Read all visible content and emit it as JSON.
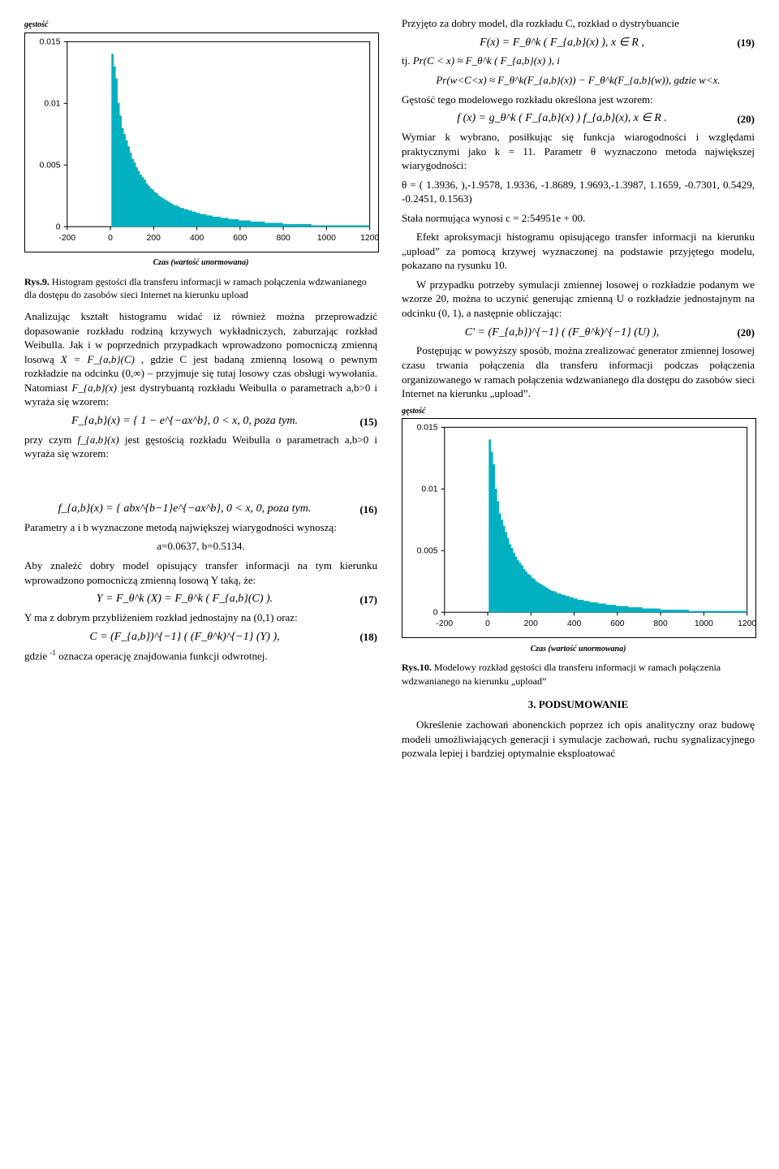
{
  "chart9": {
    "type": "histogram",
    "ylabel": "gęstość",
    "xlabel": "Czas (wartość unormowana)",
    "xlim": [
      -200,
      1200
    ],
    "ylim": [
      0,
      0.015
    ],
    "xticks": [
      -200,
      0,
      200,
      400,
      600,
      800,
      1000,
      1200
    ],
    "yticks": [
      0,
      0.005,
      0.01,
      0.015
    ],
    "bar_color": "#00b0c0",
    "bg_color": "#ffffff",
    "axis_color": "#000000",
    "bins": [
      0,
      0,
      0,
      0,
      0,
      0,
      0,
      0,
      0,
      0,
      0,
      0,
      0,
      0,
      0,
      0,
      0,
      0,
      0,
      0,
      0.0,
      0.0,
      0.014,
      0.013,
      0.012,
      0.01,
      0.009,
      0.008,
      0.0075,
      0.007,
      0.0065,
      0.006,
      0.0055,
      0.0052,
      0.0048,
      0.0045,
      0.0042,
      0.004,
      0.0038,
      0.0035,
      0.0033,
      0.0031,
      0.003,
      0.0028,
      0.0027,
      0.0025,
      0.0024,
      0.0023,
      0.0022,
      0.0021,
      0.002,
      0.0019,
      0.0018,
      0.0017,
      0.0017,
      0.0016,
      0.0015,
      0.0015,
      0.0014,
      0.0014,
      0.0013,
      0.0013,
      0.0012,
      0.0012,
      0.0011,
      0.0011,
      0.001,
      0.001,
      0.001,
      0.0009,
      0.0009,
      0.0009,
      0.0008,
      0.0008,
      0.0008,
      0.0008,
      0.0007,
      0.0007,
      0.0007,
      0.0007,
      0.0006,
      0.0006,
      0.0006,
      0.0006,
      0.0006,
      0.0005,
      0.0005,
      0.0005,
      0.0005,
      0.0005,
      0.0005,
      0.0004,
      0.0004,
      0.0004,
      0.0004,
      0.0004,
      0.0004,
      0.0004,
      0.0003,
      0.0003,
      0.0003,
      0.0003,
      0.0003,
      0.0003,
      0.0003,
      0.0003,
      0.0003,
      0.0002,
      0.0002,
      0.0002,
      0.0002,
      0.0002,
      0.0002,
      0.0002,
      0.0002,
      0.0002,
      0.0002,
      0.0002,
      0.0002,
      0.0002,
      0.0002,
      0.0001,
      0.0001,
      0.0001,
      0.0001,
      0.0001,
      0.0001,
      0.0001,
      0.0001,
      0.0001,
      0.0001,
      0.0001,
      0.0001,
      0.0001,
      0.0001,
      0.0001,
      0.0001,
      0.0001,
      0.0001,
      0.0001,
      0.0001,
      0.0001,
      0.0001,
      0.0001,
      0.0001,
      0.0001,
      0.0001,
      0.0001,
      0.0001,
      0.0001
    ]
  },
  "chart10": {
    "type": "histogram",
    "ylabel": "gęstość",
    "xlabel": "Czas (wartość unormowana)",
    "xlim": [
      -200,
      1200
    ],
    "ylim": [
      0,
      0.015
    ],
    "xticks": [
      -200,
      0,
      200,
      400,
      600,
      800,
      1000,
      1200
    ],
    "yticks": [
      0,
      0.005,
      0.01,
      0.015
    ],
    "bar_color": "#00b0c0",
    "bg_color": "#ffffff",
    "axis_color": "#000000",
    "bins": [
      0,
      0,
      0,
      0,
      0,
      0,
      0,
      0,
      0,
      0,
      0,
      0,
      0,
      0,
      0,
      0,
      0,
      0,
      0,
      0,
      0.0,
      0.0,
      0.014,
      0.013,
      0.012,
      0.01,
      0.009,
      0.008,
      0.0075,
      0.007,
      0.0065,
      0.006,
      0.0055,
      0.0052,
      0.0048,
      0.0045,
      0.0042,
      0.004,
      0.0038,
      0.0035,
      0.0033,
      0.0031,
      0.003,
      0.0028,
      0.0027,
      0.0025,
      0.0024,
      0.0023,
      0.0022,
      0.0021,
      0.002,
      0.0019,
      0.0018,
      0.0017,
      0.0017,
      0.0016,
      0.0015,
      0.0015,
      0.0014,
      0.0014,
      0.0013,
      0.0013,
      0.0012,
      0.0012,
      0.0011,
      0.0011,
      0.001,
      0.001,
      0.001,
      0.0009,
      0.0009,
      0.0009,
      0.0008,
      0.0008,
      0.0008,
      0.0008,
      0.0007,
      0.0007,
      0.0007,
      0.0007,
      0.0006,
      0.0006,
      0.0006,
      0.0006,
      0.0006,
      0.0005,
      0.0005,
      0.0005,
      0.0005,
      0.0005,
      0.0005,
      0.0004,
      0.0004,
      0.0004,
      0.0004,
      0.0004,
      0.0004,
      0.0004,
      0.0003,
      0.0003,
      0.0003,
      0.0003,
      0.0003,
      0.0003,
      0.0003,
      0.0003,
      0.0003,
      0.0002,
      0.0002,
      0.0002,
      0.0002,
      0.0002,
      0.0002,
      0.0002,
      0.0002,
      0.0002,
      0.0002,
      0.0002,
      0.0002,
      0.0002,
      0.0002,
      0.0001,
      0.0001,
      0.0001,
      0.0001,
      0.0001,
      0.0001,
      0.0001,
      0.0001,
      0.0001,
      0.0001,
      0.0001,
      0.0001,
      0.0001,
      0.0001,
      0.0001,
      0.0001,
      0.0001,
      0.0001,
      0.0001,
      0.0001,
      0.0001,
      0.0001,
      0.0001,
      0.0001,
      0.0001,
      0.0001,
      0.0001,
      0.0001,
      0.0001
    ]
  },
  "caption9_label": "Rys.9.",
  "caption9_text": "Histogram gęstości dla transferu informacji w ramach połączenia wdzwanianego dla dostępu do zasobów sieci Internet na kierunku upload",
  "caption10_label": "Rys.10.",
  "caption10_text": "Modelowy rozkład gęstości dla transferu informacji w ramach połączenia wdzwanianego na kierunku „upload”",
  "left_p1": "Analizując kształt histogramu widać iż również można przeprowadzić dopasowanie rozkładu rodziną krzywych wykładniczych, zaburzając rozkład Weibulla. Jak i w poprzednich przypadkach wprowadzono pomocniczą zmienną losową ",
  "left_p1b": ", gdzie C jest badaną zmienną losową o pewnym rozkładzie na odcinku (0,∞) – przyjmuje się tutaj losowy czas obsługi wywołania. Natomiast ",
  "left_p1c": " jest dystrybuantą rozkładu Weibulla o parametrach a,b>0 i wyraża się wzorem:",
  "eq15_num": "(15)",
  "eq15_math": "F_{a,b}(x) = { 1 − e^{−ax^b},  0 < x,    0,  poza tym.",
  "left_p2": "przy czym ",
  "left_p2b": " jest gęstością rozkładu Weibulla o parametrach a,b>0 i wyraża się wzorem:",
  "eq16_num": "(16)",
  "eq16_math": "f_{a,b}(x) = { abx^{b−1}e^{−ax^b},  0 < x,    0,  poza tym.",
  "left_p3": "Parametry a i b wyznaczone metodą największej wiarygodności wynoszą:",
  "left_p3_vals": "a=0.0637, b=0.5134.",
  "left_p4": "Aby znaleźć dobry model opisujący transfer informacji na tym kierunku wprowadzono pomocniczą zmienną losową Y taką, że:",
  "eq17_num": "(17)",
  "eq17_math": "Y = F_θ^k (X) = F_θ^k ( F_{a,b}(C) ).",
  "left_p5": "Y ma z dobrym przybliżeniem rozkład jednostajny na (0,1) oraz:",
  "eq18_num": "(18)",
  "eq18_math": "C = (F_{a,b})^{−1} ( (F_θ^k)^{−1} (Y) ),",
  "left_p6": "gdzie ",
  "left_p6b": " oznacza operację znajdowania funkcji odwrotnej.",
  "right_p1": "Przyjęto za dobry model, dla rozkładu C, rozkład o dystrybuancie",
  "eq19_num": "(19)",
  "eq19_math": "F(x) = F_θ^k ( F_{a,b}(x) ),  x ∈ R ,",
  "right_p2a": "tj. ",
  "right_p2a_math": "Pr(C < x) ≈ F_θ^k ( F_{a,b}(x) ), i",
  "right_p2b_math": "Pr(w<C<x) ≈ F_θ^k(F_{a,b}(x)) − F_θ^k(F_{a,b}(w)), gdzie w<x.",
  "right_p3": "Gęstość tego modelowego rozkładu określona jest wzorem:",
  "eq20_num": "(20)",
  "eq20_math": "f (x) = g_θ^k ( F_{a,b}(x) ) f_{a,b}(x),  x ∈ R .",
  "right_p4": "Wymiar k wybrano, posiłkując się funkcja wiarogodności i względami praktycznymi jako k = 11. Parametr θ wyznaczono metoda największej wiarygodności:",
  "right_p5": "θ = ( 1.3936, ),-1.9578, 1.9336, -1.8689, 1.9693,-1.3987, 1.1659, -0.7301, 0.5429, -0.2451, 0.1563)",
  "right_p6": "Stała normująca wynosi c = 2:54951e + 00.",
  "right_p7": "Efekt aproksymacji histogramu opisującego transfer informacji na kierunku „upload” za pomocą krzywej wyznaczonej na podstawie przyjętego modelu, pokazano na rysunku 10.",
  "right_p8": "W przypadku potrzeby symulacji zmiennej losowej o rozkładzie podanym we wzorze 20, można to uczynić generując zmienną U o rozkładzie jednostajnym na odcinku (0, 1), a następnie obliczając:",
  "eq20b_num": "(20)",
  "eq20b_math": "C' = (F_{a,b})^{−1} ( (F_θ^k)^{−1} (U) ),",
  "right_p9": "Postępując w powyższy sposób, można zrealizować generator zmiennej losowej czasu trwania połączenia dla transferu informacji podczas połączenia organizowanego w ramach połączenia wdzwanianego dla dostępu do zasobów sieci Internet na kierunku „upload”.",
  "section_head": "3. PODSUMOWANIE",
  "right_p10": "Określenie zachowań abonenckich poprzez ich opis analityczny oraz budowę modeli umożliwiających generacji i symulacje zachowań, ruchu sygnalizacyjnego pozwala lepiej i bardziej optymalnie eksploatować",
  "inline_X": "X = F_{a,b}(C)",
  "inline_Fab": "F_{a,b}(x)",
  "inline_fab": "f_{a,b}(x)",
  "inline_inv": "-1"
}
